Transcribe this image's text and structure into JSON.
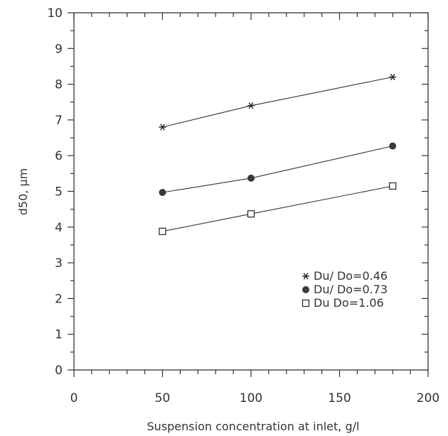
{
  "chart_data": {
    "type": "line",
    "xlabel": "Suspension  concentration at inlet,  g/l",
    "ylabel": "d50,   μm",
    "xlim": [
      0,
      200
    ],
    "ylim": [
      0,
      10
    ],
    "x_ticks": [
      0,
      50,
      100,
      150,
      200
    ],
    "x_tick_labels": [
      "0",
      "50",
      "100",
      "150",
      "200"
    ],
    "y_ticks": [
      0,
      1,
      2,
      3,
      4,
      5,
      6,
      7,
      8,
      9,
      10
    ],
    "y_tick_labels": [
      "0",
      "1",
      "2",
      "3",
      "4",
      "5",
      "6",
      "7",
      "8",
      "9",
      "10"
    ],
    "grid": false,
    "legend_position": "lower-right",
    "series": [
      {
        "name": "Du/ Do=0.46",
        "marker": "asterisk",
        "x": [
          50,
          100,
          180
        ],
        "y": [
          6.8,
          7.4,
          8.2
        ]
      },
      {
        "name": "Du/ Do=0.73",
        "marker": "filled-circle",
        "x": [
          50,
          100,
          180
        ],
        "y": [
          4.97,
          5.37,
          6.27
        ]
      },
      {
        "name": "Du  Do=1.06",
        "marker": "open-square",
        "x": [
          50,
          100,
          180
        ],
        "y": [
          3.88,
          4.37,
          5.15
        ]
      }
    ]
  }
}
